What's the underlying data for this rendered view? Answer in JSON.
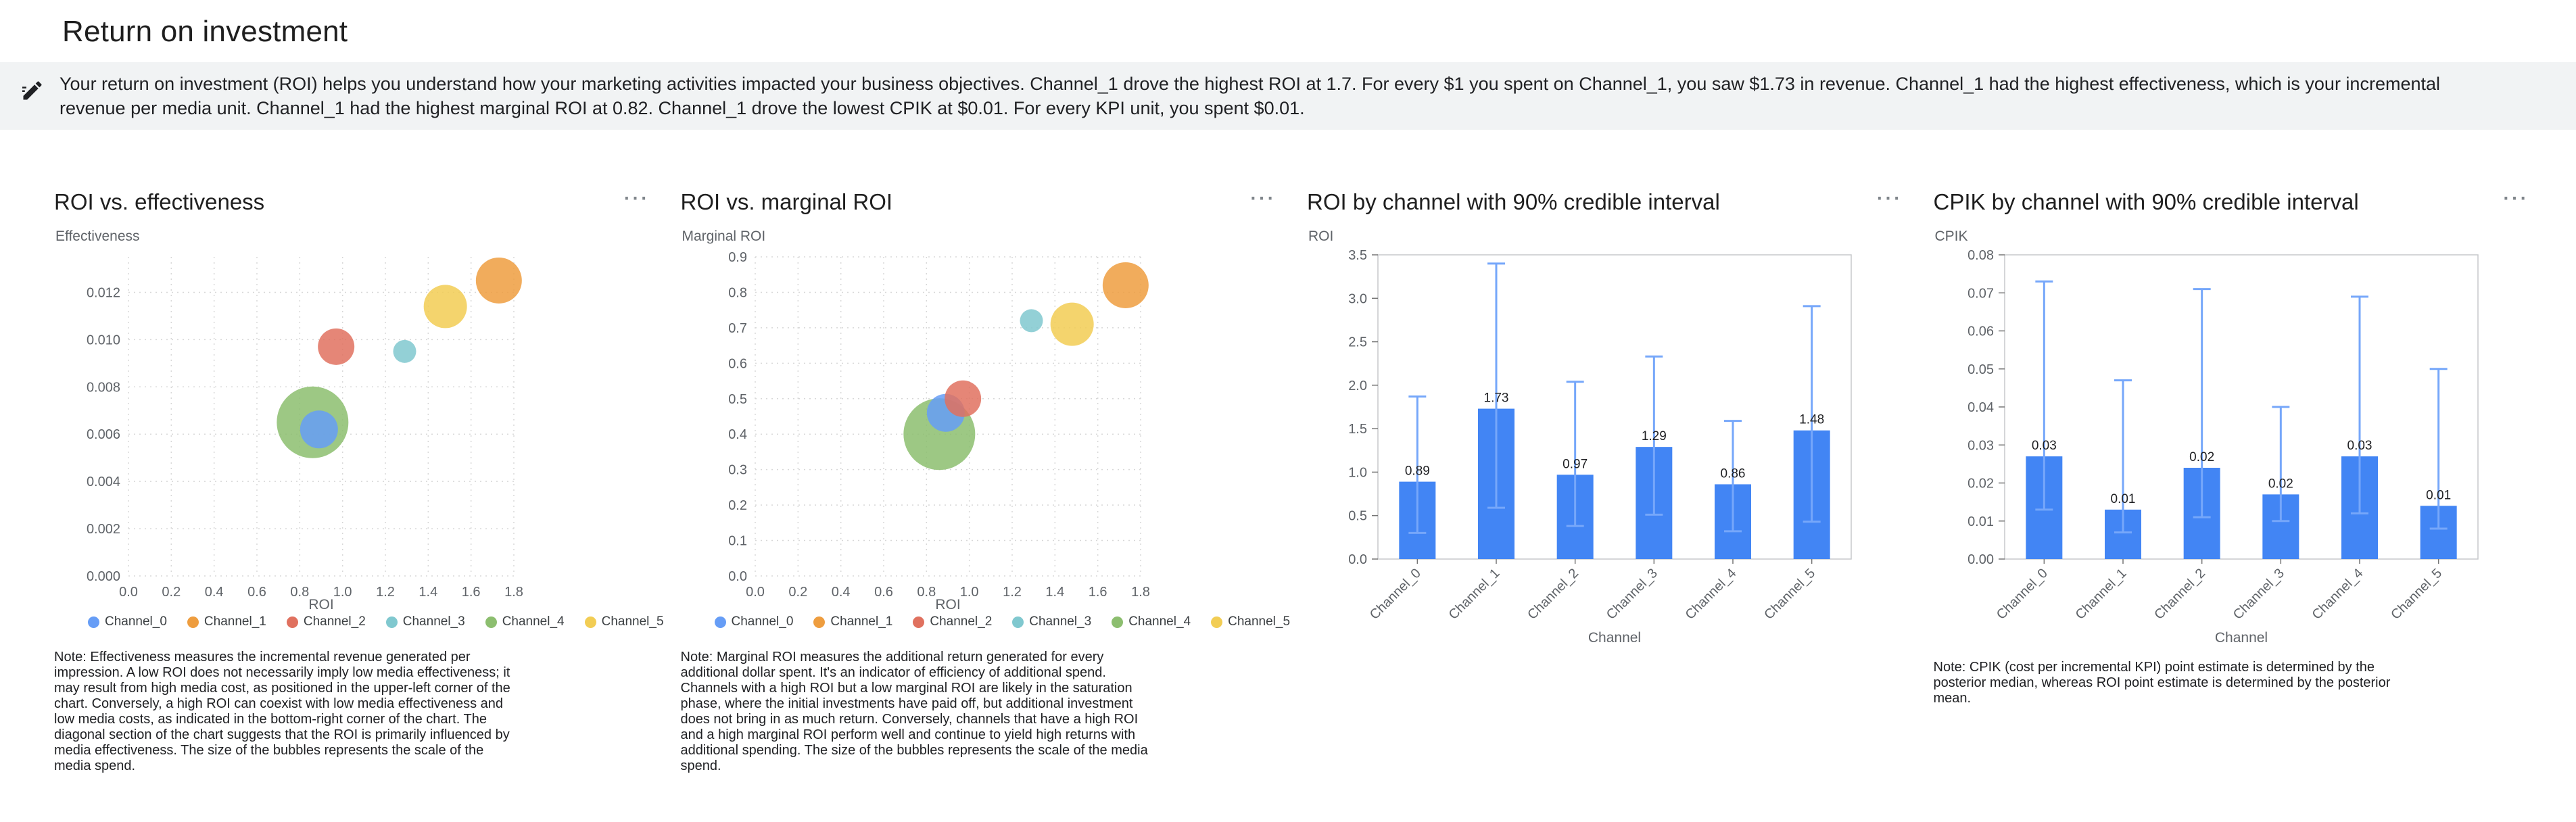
{
  "page": {
    "title": "Return on investment"
  },
  "insight_banner": {
    "icon": "insights-pencil-icon",
    "text": "Your return on investment (ROI) helps you understand how your marketing activities impacted your business objectives. Channel_1 drove the highest ROI at 1.7. For every $1 you spent on Channel_1, you saw $1.73 in revenue. Channel_1 had the highest effectiveness, which is your incremental revenue per media unit. Channel_1 had the highest marginal ROI at 0.82. Channel_1 drove the lowest CPIK at $0.01. For every KPI unit, you spent $0.01."
  },
  "ui": {
    "more_options_glyph": "⋯"
  },
  "channels": [
    "Channel_0",
    "Channel_1",
    "Channel_2",
    "Channel_3",
    "Channel_4",
    "Channel_5"
  ],
  "channel_colors": {
    "Channel_0": "#669DF6",
    "Channel_1": "#EE9D3F",
    "Channel_2": "#E0715F",
    "Channel_3": "#80C8CF",
    "Channel_4": "#8CBE6F",
    "Channel_5": "#F2CD54"
  },
  "bar_style": {
    "bar_color": "#4285F4",
    "interval_color": "#76A7FA"
  },
  "chart_data": [
    {
      "type": "scatter",
      "title": "ROI vs. effectiveness",
      "xlabel": "ROI",
      "ylabel": "Effectiveness",
      "xlim": [
        0,
        1.8
      ],
      "ylim": [
        0,
        0.0135
      ],
      "x_ticks": [
        0,
        0.2,
        0.4,
        0.6,
        0.8,
        1.0,
        1.2,
        1.4,
        1.6,
        1.8
      ],
      "x_tick_labels": [
        "0.0",
        "0.2",
        "0.4",
        "0.6",
        "0.8",
        "1.0",
        "1.2",
        "1.4",
        "1.6",
        "1.8"
      ],
      "y_ticks": [
        0,
        0.002,
        0.004,
        0.006,
        0.008,
        0.01,
        0.012
      ],
      "y_tick_labels": [
        "0.000",
        "0.002",
        "0.004",
        "0.006",
        "0.008",
        "0.010",
        "0.012"
      ],
      "grid": "dotted",
      "legend_position": "bottom",
      "points": [
        {
          "channel": "Channel_0",
          "x": 0.89,
          "y": 0.0062,
          "size": 28
        },
        {
          "channel": "Channel_1",
          "x": 1.73,
          "y": 0.0125,
          "size": 34
        },
        {
          "channel": "Channel_2",
          "x": 0.97,
          "y": 0.0097,
          "size": 27
        },
        {
          "channel": "Channel_3",
          "x": 1.29,
          "y": 0.0095,
          "size": 17
        },
        {
          "channel": "Channel_4",
          "x": 0.86,
          "y": 0.0065,
          "size": 53
        },
        {
          "channel": "Channel_5",
          "x": 1.48,
          "y": 0.0114,
          "size": 32
        }
      ],
      "note": "Note: Effectiveness measures the incremental revenue generated per impression. A low ROI does not necessarily imply low media effectiveness; it may result from high media cost, as positioned in the upper-left corner of the chart. Conversely, a high ROI can coexist with low media effectiveness and low media costs, as indicated in the bottom-right corner of the chart. The diagonal section of the chart suggests that the ROI is primarily influenced by media effectiveness. The size of the bubbles represents the scale of the media spend."
    },
    {
      "type": "scatter",
      "title": "ROI vs. marginal ROI",
      "xlabel": "ROI",
      "ylabel": "Marginal ROI",
      "xlim": [
        0,
        1.8
      ],
      "ylim": [
        0,
        0.9
      ],
      "x_ticks": [
        0,
        0.2,
        0.4,
        0.6,
        0.8,
        1.0,
        1.2,
        1.4,
        1.6,
        1.8
      ],
      "x_tick_labels": [
        "0.0",
        "0.2",
        "0.4",
        "0.6",
        "0.8",
        "1.0",
        "1.2",
        "1.4",
        "1.6",
        "1.8"
      ],
      "y_ticks": [
        0,
        0.1,
        0.2,
        0.3,
        0.4,
        0.5,
        0.6,
        0.7,
        0.8,
        0.9
      ],
      "y_tick_labels": [
        "0.0",
        "0.1",
        "0.2",
        "0.3",
        "0.4",
        "0.5",
        "0.6",
        "0.7",
        "0.8",
        "0.9"
      ],
      "grid": "dotted",
      "legend_position": "bottom",
      "points": [
        {
          "channel": "Channel_0",
          "x": 0.89,
          "y": 0.46,
          "size": 28
        },
        {
          "channel": "Channel_1",
          "x": 1.73,
          "y": 0.82,
          "size": 34
        },
        {
          "channel": "Channel_2",
          "x": 0.97,
          "y": 0.5,
          "size": 27
        },
        {
          "channel": "Channel_3",
          "x": 1.29,
          "y": 0.72,
          "size": 17
        },
        {
          "channel": "Channel_4",
          "x": 0.86,
          "y": 0.4,
          "size": 53
        },
        {
          "channel": "Channel_5",
          "x": 1.48,
          "y": 0.71,
          "size": 32
        }
      ],
      "note": "Note: Marginal ROI measures the additional return generated for every additional dollar spent. It's an indicator of efficiency of additional spend. Channels with a high ROI but a low marginal ROI are likely in the saturation phase, where the initial investments have paid off, but additional investment does not bring in as much return. Conversely, channels that have a high ROI and a high marginal ROI perform well and continue to yield high returns with additional spending. The size of the bubbles represents the scale of the media spend."
    },
    {
      "type": "bar",
      "title": "ROI by channel with 90% credible interval",
      "xlabel": "Channel",
      "ylabel": "ROI",
      "ylim": [
        0,
        3.5
      ],
      "y_ticks": [
        0,
        0.5,
        1.0,
        1.5,
        2.0,
        2.5,
        3.0,
        3.5
      ],
      "y_tick_labels": [
        "0.0",
        "0.5",
        "1.0",
        "1.5",
        "2.0",
        "2.5",
        "3.0",
        "3.5"
      ],
      "categories": [
        "Channel_0",
        "Channel_1",
        "Channel_2",
        "Channel_3",
        "Channel_4",
        "Channel_5"
      ],
      "values": [
        0.89,
        1.73,
        0.97,
        1.29,
        0.86,
        1.48
      ],
      "value_labels": [
        "0.89",
        "1.73",
        "0.97",
        "1.29",
        "0.86",
        "1.48"
      ],
      "ci_low": [
        0.3,
        0.59,
        0.38,
        0.51,
        0.32,
        0.43
      ],
      "ci_high": [
        1.87,
        3.4,
        2.04,
        2.33,
        1.59,
        2.91
      ]
    },
    {
      "type": "bar",
      "title": "CPIK by channel with 90% credible interval",
      "xlabel": "Channel",
      "ylabel": "CPIK",
      "ylim": [
        0,
        0.08
      ],
      "y_ticks": [
        0,
        0.01,
        0.02,
        0.03,
        0.04,
        0.05,
        0.06,
        0.07,
        0.08
      ],
      "y_tick_labels": [
        "0.00",
        "0.01",
        "0.02",
        "0.03",
        "0.04",
        "0.05",
        "0.06",
        "0.07",
        "0.08"
      ],
      "categories": [
        "Channel_0",
        "Channel_1",
        "Channel_2",
        "Channel_3",
        "Channel_4",
        "Channel_5"
      ],
      "values": [
        0.027,
        0.013,
        0.024,
        0.017,
        0.027,
        0.014
      ],
      "value_labels": [
        "0.03",
        "0.01",
        "0.02",
        "0.02",
        "0.03",
        "0.01"
      ],
      "ci_low": [
        0.013,
        0.007,
        0.011,
        0.01,
        0.012,
        0.008
      ],
      "ci_high": [
        0.073,
        0.047,
        0.071,
        0.04,
        0.069,
        0.05
      ],
      "note": "Note: CPIK (cost per incremental KPI) point estimate is determined by the posterior median, whereas ROI point estimate is determined by the posterior mean."
    }
  ]
}
